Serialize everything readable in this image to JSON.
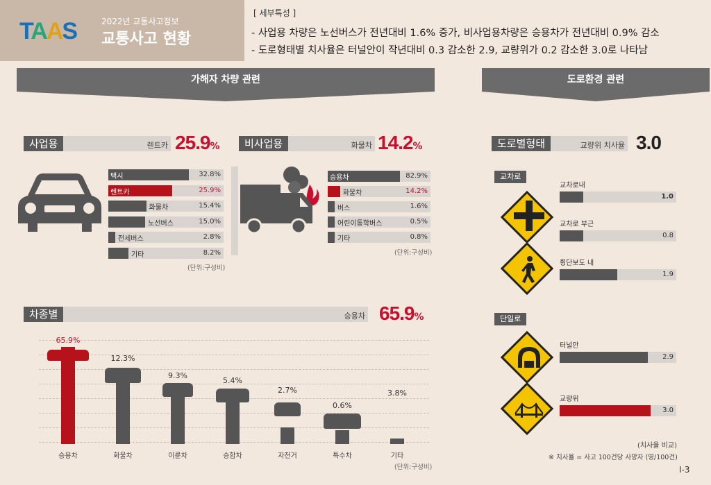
{
  "header": {
    "logo": "TAAS",
    "subtitle": "2022년 교통사고정보",
    "title": "교통사고 현황",
    "detail_heading": "[ 세부특성 ]",
    "detail_lines": [
      "- 사업용 차량은 노선버스가 전년대비 1.6% 증가, 비사업용차량은 승용차가 전년대비 0.9% 감소",
      "- 도로형태별 치사율은 터널안이 작년대비 0.3 감소한 2.9, 교량위가 0.2 감소한 3.0로 나타남"
    ]
  },
  "banners": {
    "left": "가해자 차량 관련",
    "right": "도로환경 관련"
  },
  "business": {
    "label": "사업용",
    "highlight_label": "렌트카",
    "highlight_value": "25.9",
    "pct": "%",
    "unit": "(단위:구성비)",
    "rows": [
      {
        "label": "택시",
        "value": "32.8%",
        "v": 32.8,
        "hl": false
      },
      {
        "label": "렌트카",
        "value": "25.9%",
        "v": 25.9,
        "hl": true
      },
      {
        "label": "화물차",
        "value": "15.4%",
        "v": 15.4,
        "hl": false
      },
      {
        "label": "노선버스",
        "value": "15.0%",
        "v": 15.0,
        "hl": false
      },
      {
        "label": "전세버스",
        "value": "2.8%",
        "v": 2.8,
        "hl": false
      },
      {
        "label": "기타",
        "value": "8.2%",
        "v": 8.2,
        "hl": false
      }
    ]
  },
  "nonbusiness": {
    "label": "비사업용",
    "highlight_label": "화물차",
    "highlight_value": "14.2",
    "pct": "%",
    "unit": "(단위:구성비)",
    "rows": [
      {
        "label": "승용차",
        "value": "82.9%",
        "v": 82.9,
        "hl": false
      },
      {
        "label": "화물차",
        "value": "14.2%",
        "v": 14.2,
        "hl": true
      },
      {
        "label": "버스",
        "value": "1.6%",
        "v": 1.6,
        "hl": false
      },
      {
        "label": "어린이통학버스",
        "value": "0.5%",
        "v": 0.5,
        "hl": false
      },
      {
        "label": "기타",
        "value": "0.8%",
        "v": 0.8,
        "hl": false
      }
    ]
  },
  "vehicle_type": {
    "label": "차종별",
    "highlight_label": "승용차",
    "highlight_value": "65.9",
    "pct": "%",
    "unit": "(단위:구성비)"
  },
  "road": {
    "label": "도로별형태",
    "highlight_label": "교량위 치사율",
    "highlight_value": "3.0",
    "group1": "교차로",
    "group2": "단일로",
    "items": [
      {
        "label": "교차로내",
        "value": "1.0",
        "v": 1.0,
        "hl": false,
        "icon": "cross-sign-icon"
      },
      {
        "label": "교차로 부근",
        "value": "0.8",
        "v": 0.8,
        "hl": false,
        "icon": "cross-sign-icon"
      },
      {
        "label": "횡단보도 내",
        "value": "1.9",
        "v": 1.9,
        "hl": false,
        "icon": "pedestrian-sign-icon"
      },
      {
        "label": "터널안",
        "value": "2.9",
        "v": 2.9,
        "hl": false,
        "icon": "tunnel-sign-icon"
      },
      {
        "label": "교량위",
        "value": "3.0",
        "v": 3.0,
        "hl": true,
        "icon": "bridge-sign-icon"
      }
    ],
    "note1": "(치사율 비교)",
    "note2": "※ 치사율 = 사고 100건당 사망자 (명/100건)"
  },
  "page_number": "Ⅰ-3",
  "colors": {
    "accent": "#c8102e",
    "bar": "#555555",
    "track": "#d9d4d0",
    "background": "#f3e8de"
  },
  "chart_data": {
    "type": "bar",
    "categories": [
      "승용차",
      "화물차",
      "이륜차",
      "승합차",
      "자전거",
      "특수차",
      "기타"
    ],
    "values": [
      65.9,
      12.3,
      9.3,
      5.4,
      2.7,
      0.6,
      3.8
    ],
    "value_labels": [
      "65.9%",
      "12.3%",
      "9.3%",
      "5.4%",
      "2.7%",
      "0.6%",
      "3.8%"
    ],
    "highlight_index": 0,
    "grid": true
  }
}
